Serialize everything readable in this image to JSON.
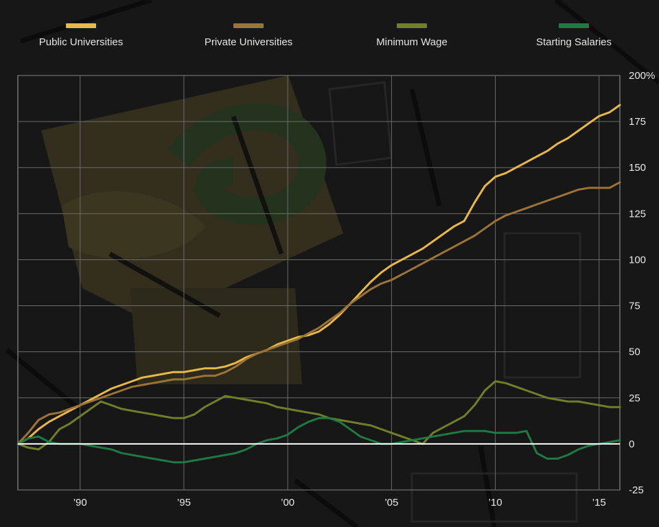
{
  "legend": {
    "items": [
      {
        "label": "Public Universities",
        "color": "#e8b84b"
      },
      {
        "label": "Private Universities",
        "color": "#9c7438"
      },
      {
        "label": "Minimum Wage",
        "color": "#6f7f2a"
      },
      {
        "label": "Starting Salaries",
        "color": "#1e7a45"
      }
    ]
  },
  "chart_data": {
    "type": "line",
    "xlim": [
      1987,
      2016
    ],
    "ylim": [
      -25,
      200
    ],
    "x_ticks": [
      1990,
      1995,
      2000,
      2005,
      2010,
      2015
    ],
    "x_tick_labels": [
      "’90",
      "’95",
      "’00",
      "’05",
      "’10",
      "’15"
    ],
    "y_ticks": [
      -25,
      0,
      25,
      50,
      75,
      100,
      125,
      150,
      175,
      200
    ],
    "y_tick_labels": [
      "-25",
      "0",
      "25",
      "50",
      "75",
      "100",
      "125",
      "150",
      "175",
      "200%"
    ],
    "grid": true,
    "baseline": 0,
    "legend_position": "top",
    "series": [
      {
        "name": "Public Universities",
        "color": "#e8b84b",
        "x": [
          1987,
          1987.5,
          1988,
          1988.5,
          1989,
          1989.5,
          1990,
          1990.5,
          1991,
          1991.5,
          1992,
          1992.5,
          1993,
          1993.5,
          1994,
          1994.5,
          1995,
          1995.5,
          1996,
          1996.5,
          1997,
          1997.5,
          1998,
          1998.5,
          1999,
          1999.5,
          2000,
          2000.5,
          2001,
          2001.5,
          2002,
          2002.5,
          2003,
          2003.5,
          2004,
          2004.5,
          2005,
          2005.5,
          2006,
          2006.5,
          2007,
          2007.5,
          2008,
          2008.5,
          2009,
          2009.5,
          2010,
          2010.5,
          2011,
          2011.5,
          2012,
          2012.5,
          2013,
          2013.5,
          2014,
          2014.5,
          2015,
          2015.5,
          2016
        ],
        "values": [
          0,
          3,
          8,
          12,
          15,
          18,
          21,
          24,
          27,
          30,
          32,
          34,
          36,
          37,
          38,
          39,
          39,
          40,
          41,
          41,
          42,
          44,
          47,
          49,
          51,
          54,
          56,
          58,
          59,
          61,
          65,
          70,
          76,
          82,
          88,
          93,
          97,
          100,
          103,
          106,
          110,
          114,
          118,
          121,
          131,
          140,
          145,
          147,
          150,
          153,
          156,
          159,
          163,
          166,
          170,
          174,
          178,
          180,
          184
        ]
      },
      {
        "name": "Private Universities",
        "color": "#9c7438",
        "x": [
          1987,
          1987.5,
          1988,
          1988.5,
          1989,
          1989.5,
          1990,
          1990.5,
          1991,
          1991.5,
          1992,
          1992.5,
          1993,
          1993.5,
          1994,
          1994.5,
          1995,
          1995.5,
          1996,
          1996.5,
          1997,
          1997.5,
          1998,
          1998.5,
          1999,
          1999.5,
          2000,
          2000.5,
          2001,
          2001.5,
          2002,
          2002.5,
          2003,
          2003.5,
          2004,
          2004.5,
          2005,
          2005.5,
          2006,
          2006.5,
          2007,
          2007.5,
          2008,
          2008.5,
          2009,
          2009.5,
          2010,
          2010.5,
          2011,
          2011.5,
          2012,
          2012.5,
          2013,
          2013.5,
          2014,
          2014.5,
          2015,
          2015.5,
          2016
        ],
        "values": [
          0,
          6,
          13,
          16,
          17,
          19,
          21,
          23,
          25,
          27,
          29,
          31,
          32,
          33,
          34,
          35,
          35,
          36,
          37,
          37,
          39,
          42,
          46,
          49,
          51,
          53,
          55,
          57,
          60,
          63,
          67,
          71,
          76,
          80,
          84,
          87,
          89,
          92,
          95,
          98,
          101,
          104,
          107,
          110,
          113,
          117,
          121,
          124,
          126,
          128,
          130,
          132,
          134,
          136,
          138,
          139,
          139,
          139,
          142
        ]
      },
      {
        "name": "Minimum Wage",
        "color": "#6f7f2a",
        "x": [
          1987,
          1987.5,
          1988,
          1988.5,
          1989,
          1989.5,
          1990,
          1990.5,
          1991,
          1991.5,
          1992,
          1992.5,
          1993,
          1993.5,
          1994,
          1994.5,
          1995,
          1995.5,
          1996,
          1996.5,
          1997,
          1997.5,
          1998,
          1998.5,
          1999,
          1999.5,
          2000,
          2000.5,
          2001,
          2001.5,
          2002,
          2002.5,
          2003,
          2003.5,
          2004,
          2004.5,
          2005,
          2005.5,
          2006,
          2006.5,
          2007,
          2007.5,
          2008,
          2008.5,
          2009,
          2009.5,
          2010,
          2010.5,
          2011,
          2011.5,
          2012,
          2012.5,
          2013,
          2013.5,
          2014,
          2014.5,
          2015,
          2015.5,
          2016
        ],
        "values": [
          0,
          -2,
          -3,
          1,
          8,
          11,
          15,
          19,
          23,
          21,
          19,
          18,
          17,
          16,
          15,
          14,
          14,
          16,
          20,
          23,
          26,
          25,
          24,
          23,
          22,
          20,
          19,
          18,
          17,
          16,
          14,
          13,
          12,
          11,
          10,
          8,
          6,
          4,
          2,
          0,
          6,
          9,
          12,
          15,
          21,
          29,
          34,
          33,
          31,
          29,
          27,
          25,
          24,
          23,
          23,
          22,
          21,
          20,
          20
        ]
      },
      {
        "name": "Starting Salaries",
        "color": "#1e7a45",
        "x": [
          1987,
          1987.5,
          1988,
          1988.5,
          1989,
          1989.5,
          1990,
          1990.5,
          1991,
          1991.5,
          1992,
          1992.5,
          1993,
          1993.5,
          1994,
          1994.5,
          1995,
          1995.5,
          1996,
          1996.5,
          1997,
          1997.5,
          1998,
          1998.5,
          1999,
          1999.5,
          2000,
          2000.5,
          2001,
          2001.5,
          2002,
          2002.5,
          2003,
          2003.5,
          2004,
          2004.5,
          2005,
          2005.5,
          2006,
          2006.5,
          2007,
          2007.5,
          2008,
          2008.5,
          2009,
          2009.5,
          2010,
          2010.5,
          2011,
          2011.5,
          2012,
          2012.5,
          2013,
          2013.5,
          2014,
          2014.5,
          2015,
          2015.5,
          2016
        ],
        "values": [
          0,
          3,
          4,
          1,
          0,
          0,
          0,
          -1,
          -2,
          -3,
          -5,
          -6,
          -7,
          -8,
          -9,
          -10,
          -10,
          -9,
          -8,
          -7,
          -6,
          -5,
          -3,
          0,
          2,
          3,
          5,
          9,
          12,
          14,
          14,
          12,
          8,
          4,
          2,
          0,
          0,
          1,
          2,
          3,
          4,
          5,
          6,
          7,
          7,
          7,
          6,
          6,
          6,
          7,
          -5,
          -8,
          -8,
          -6,
          -3,
          -1,
          0,
          1,
          2
        ]
      }
    ]
  }
}
